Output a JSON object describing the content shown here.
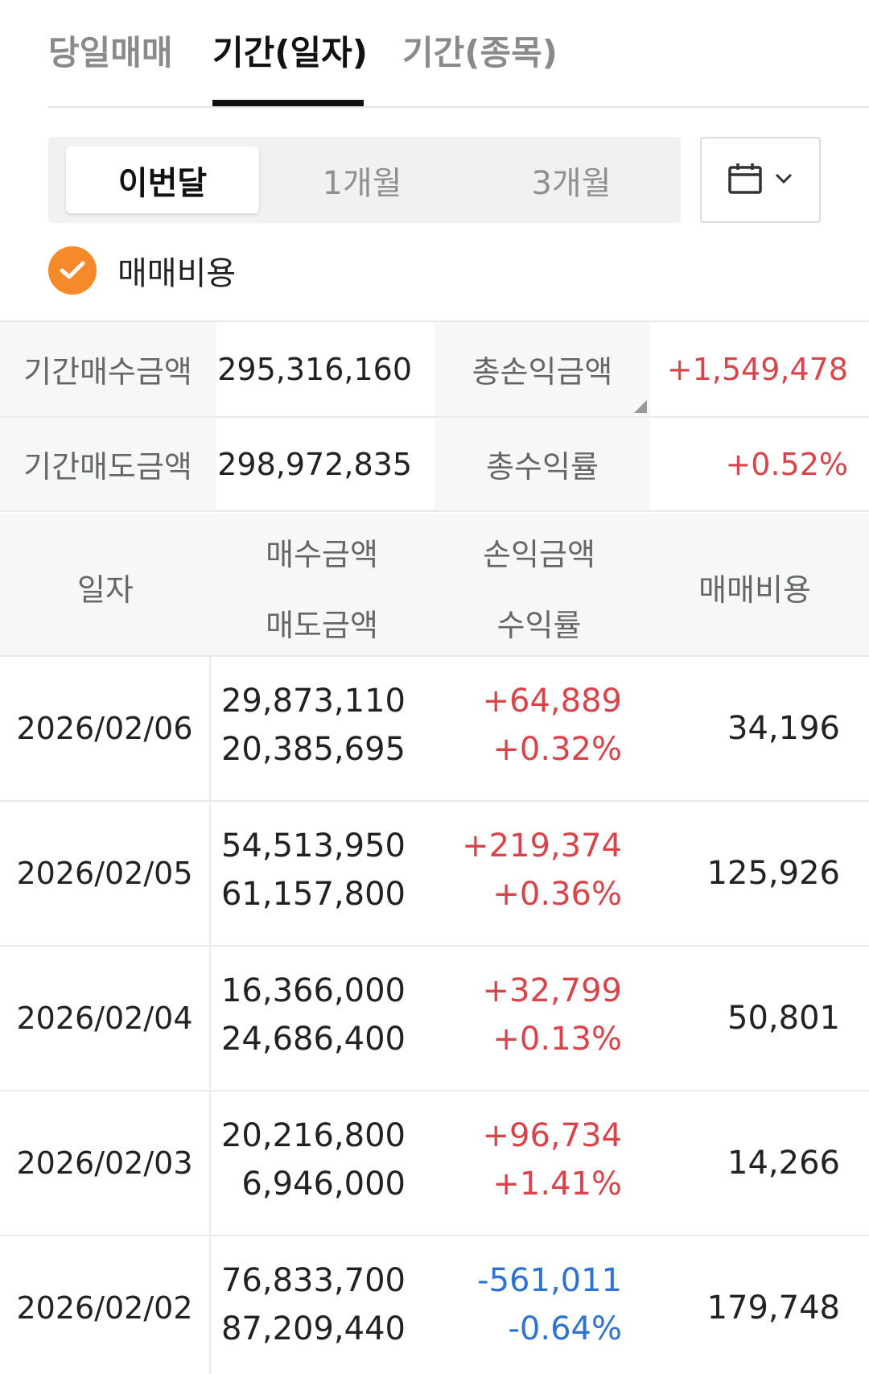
{
  "tabs": [
    {
      "label": "당일매매",
      "active": false
    },
    {
      "label": "기간(일자)",
      "active": true
    },
    {
      "label": "기간(종목)",
      "active": false
    }
  ],
  "period": {
    "options": [
      "이번달",
      "1개월",
      "3개월"
    ],
    "selected": "이번달",
    "calendar_icon": "calendar-icon",
    "dropdown_icon": "chevron-down-icon"
  },
  "fee_checkbox": {
    "label": "매매비용",
    "checked": true,
    "color": "#f6892a"
  },
  "summary": {
    "buy_label": "기간매수금액",
    "buy_value": "295,316,160",
    "sell_label": "기간매도금액",
    "sell_value": "298,972,835",
    "pl_label": "총손익금액",
    "pl_value": "+1,549,478",
    "rate_label": "총수익률",
    "rate_value": "+0.52%"
  },
  "detail_header": {
    "date": "일자",
    "buy_amount": "매수금액",
    "sell_amount": "매도금액",
    "pl_amount": "손익금액",
    "rate": "수익률",
    "fee": "매매비용"
  },
  "rows": [
    {
      "date": "2026/02/06",
      "buy": "29,873,110",
      "sell": "20,385,695",
      "pl": "+64,889",
      "rate": "+0.32%",
      "fee": "34,196",
      "positive": true
    },
    {
      "date": "2026/02/05",
      "buy": "54,513,950",
      "sell": "61,157,800",
      "pl": "+219,374",
      "rate": "+0.36%",
      "fee": "125,926",
      "positive": true
    },
    {
      "date": "2026/02/04",
      "buy": "16,366,000",
      "sell": "24,686,400",
      "pl": "+32,799",
      "rate": "+0.13%",
      "fee": "50,801",
      "positive": true
    },
    {
      "date": "2026/02/03",
      "buy": "20,216,800",
      "sell": "6,946,000",
      "pl": "+96,734",
      "rate": "+1.41%",
      "fee": "14,266",
      "positive": true
    },
    {
      "date": "2026/02/02",
      "buy": "76,833,700",
      "sell": "87,209,440",
      "pl": "-561,011",
      "rate": "-0.64%",
      "fee": "179,748",
      "positive": false
    }
  ],
  "colors": {
    "positive": "#d9444b",
    "negative": "#2e72d2",
    "accent": "#f6892a"
  }
}
